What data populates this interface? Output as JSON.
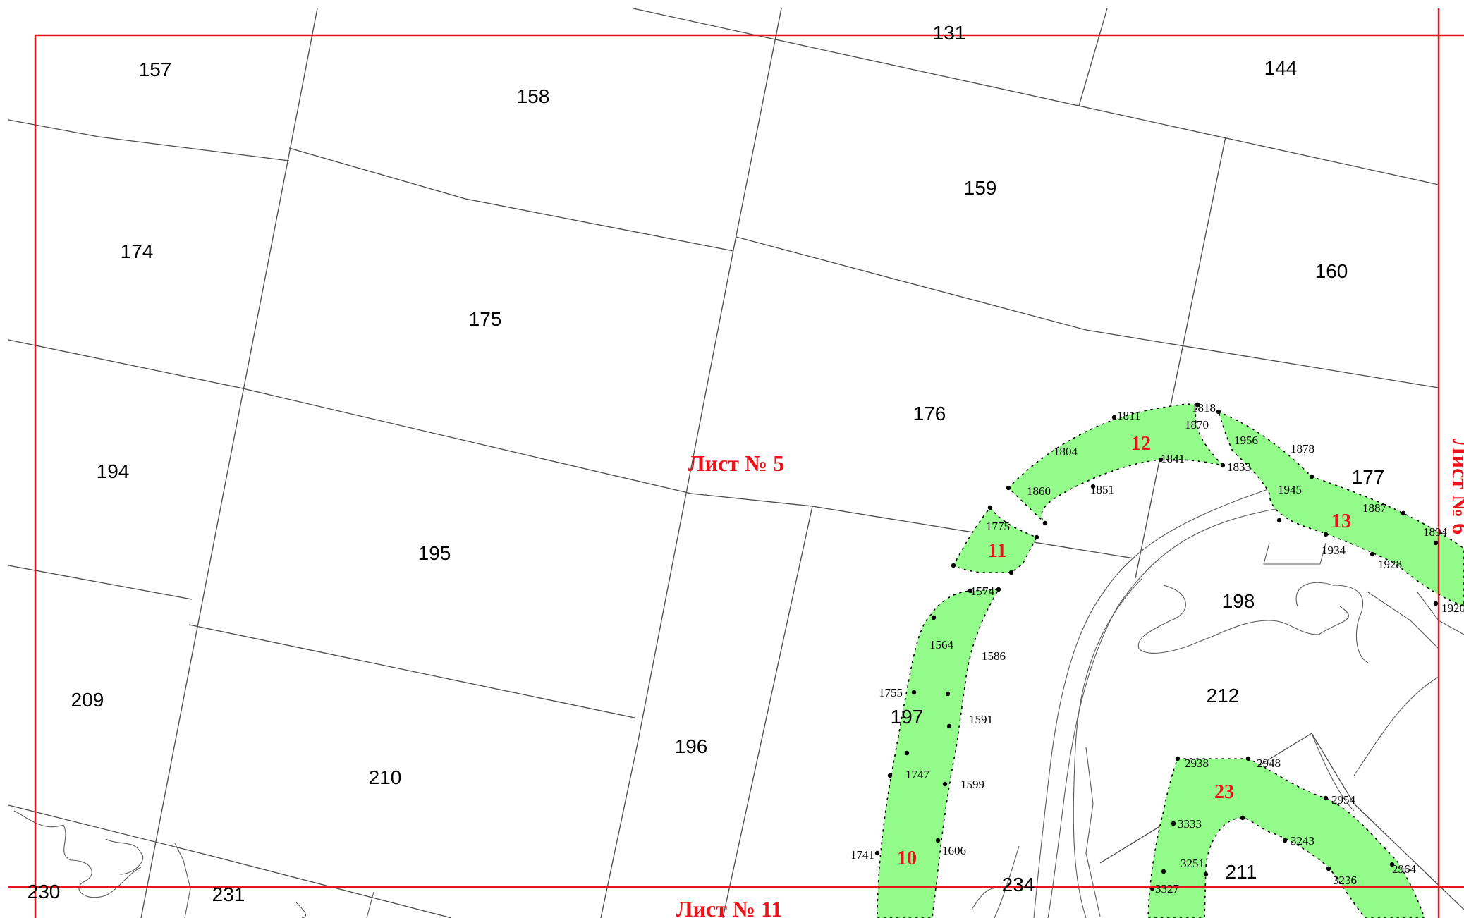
{
  "colors": {
    "frame": "#e8141c",
    "zone_fill": "#92fb8a",
    "parcel_line": "#4a4a4a",
    "vertex": "#000000"
  },
  "sheets": {
    "current": "Лист № 5",
    "below": "Лист № 11",
    "right": "Лист № 6"
  },
  "parcels": {
    "p131": "131",
    "p144": "144",
    "p157": "157",
    "p158": "158",
    "p159": "159",
    "p160": "160",
    "p174": "174",
    "p175": "175",
    "p176": "176",
    "p177": "177",
    "p194": "194",
    "p195": "195",
    "p196": "196",
    "p197": "197",
    "p198": "198",
    "p209": "209",
    "p210": "210",
    "p211": "211",
    "p212": "212",
    "p230": "230",
    "p231": "231",
    "p234": "234"
  },
  "zones": {
    "z10": "10",
    "z11": "11",
    "z12": "12",
    "z13": "13",
    "z23": "23"
  },
  "points": {
    "pt1818": "1818",
    "pt1811": "1811",
    "pt1870": "1870",
    "pt1804": "1804",
    "pt1841": "1841",
    "pt1833": "1833",
    "pt1860": "1860",
    "pt1851": "1851",
    "pt1775": "1775",
    "pt1956": "1956",
    "pt1878": "1878",
    "pt1945": "1945",
    "pt1887": "1887",
    "pt1894": "1894",
    "pt1934": "1934",
    "pt1928": "1928",
    "pt1920": "1920",
    "pt1574": "1574",
    "pt1564": "1564",
    "pt1586": "1586",
    "pt1755": "1755",
    "pt1591": "1591",
    "pt1747": "1747",
    "pt1599": "1599",
    "pt1741": "1741",
    "pt1606": "1606",
    "pt2938": "2938",
    "pt2948": "2948",
    "pt2954": "2954",
    "pt3333": "3333",
    "pt3243": "3243",
    "pt3251": "3251",
    "pt3236": "3236",
    "pt2964": "2964",
    "pt3327": "3327"
  }
}
